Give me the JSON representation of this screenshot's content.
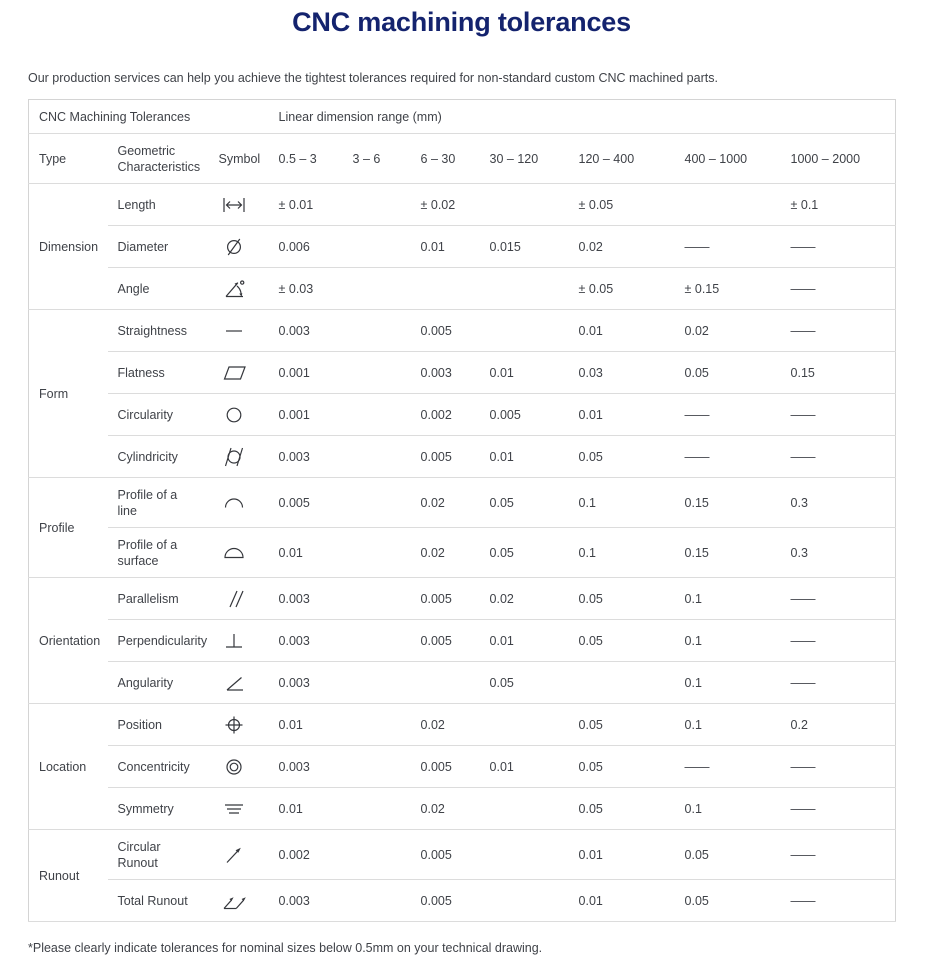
{
  "title": "CNC machining tolerances",
  "intro": "Our production services can help you achieve the tightest tolerances required for non-standard custom CNC machined parts.",
  "footnote": "*Please clearly indicate tolerances for nominal sizes below 0.5mm on your technical drawing.",
  "colors": {
    "title": "#14236e",
    "text": "#3f4248",
    "border": "#dcdcdc",
    "symbol_stroke": "#35373c"
  },
  "table": {
    "header_left": "CNC Machining Tolerances",
    "header_right": "Linear dimension range  (mm)",
    "columns": [
      "Type",
      "Geometric Characteristics",
      "Symbol",
      "0.5 – 3",
      "3 – 6",
      "6 – 30",
      "30 – 120",
      "120 – 400",
      "400 – 1000",
      "1000 – 2000"
    ],
    "groups": [
      {
        "type": "Dimension",
        "rows": [
          {
            "characteristic": "Length",
            "symbol": "length-symbol",
            "values": [
              "± 0.01",
              "",
              "± 0.02",
              "",
              "± 0.05",
              "",
              "± 0.1"
            ]
          },
          {
            "characteristic": "Diameter",
            "symbol": "diameter-symbol",
            "values": [
              "0.006",
              "",
              "0.01",
              "0.015",
              "0.02",
              "——",
              "——"
            ]
          },
          {
            "characteristic": "Angle",
            "symbol": "angle-symbol",
            "values": [
              "± 0.03",
              "",
              "",
              "",
              "± 0.05",
              "± 0.15",
              "——"
            ]
          }
        ]
      },
      {
        "type": "Form",
        "rows": [
          {
            "characteristic": "Straightness",
            "symbol": "straightness-symbol",
            "values": [
              "0.003",
              "",
              "0.005",
              "",
              "0.01",
              "0.02",
              "——"
            ]
          },
          {
            "characteristic": "Flatness",
            "symbol": "flatness-symbol",
            "values": [
              "0.001",
              "",
              "0.003",
              "0.01",
              "0.03",
              "0.05",
              "0.15"
            ]
          },
          {
            "characteristic": "Circularity",
            "symbol": "circularity-symbol",
            "values": [
              "0.001",
              "",
              "0.002",
              "0.005",
              "0.01",
              "——",
              "——"
            ]
          },
          {
            "characteristic": "Cylindricity",
            "symbol": "cylindricity-symbol",
            "values": [
              "0.003",
              "",
              "0.005",
              "0.01",
              "0.05",
              "——",
              "——"
            ]
          }
        ]
      },
      {
        "type": "Profile",
        "rows": [
          {
            "characteristic": "Profile of a line",
            "symbol": "profile-of-line-symbol",
            "values": [
              "0.005",
              "",
              "0.02",
              "0.05",
              "0.1",
              "0.15",
              "0.3"
            ]
          },
          {
            "characteristic": "Profile of a surface",
            "symbol": "profile-of-surface-symbol",
            "values": [
              "0.01",
              "",
              "0.02",
              "0.05",
              "0.1",
              "0.15",
              "0.3"
            ]
          }
        ]
      },
      {
        "type": "Orientation",
        "rows": [
          {
            "characteristic": "Parallelism",
            "symbol": "parallelism-symbol",
            "values": [
              "0.003",
              "",
              "0.005",
              "0.02",
              "0.05",
              "0.1",
              "——"
            ]
          },
          {
            "characteristic": "Perpendicularity",
            "symbol": "perpendicularity-symbol",
            "values": [
              "0.003",
              "",
              "0.005",
              "0.01",
              "0.05",
              "0.1",
              "——"
            ]
          },
          {
            "characteristic": "Angularity",
            "symbol": "angularity-symbol",
            "values": [
              "0.003",
              "",
              "",
              "0.05",
              "",
              "0.1",
              "——"
            ]
          }
        ]
      },
      {
        "type": "Location",
        "rows": [
          {
            "characteristic": "Position",
            "symbol": "position-symbol",
            "values": [
              "0.01",
              "",
              "0.02",
              "",
              "0.05",
              "0.1",
              "0.2"
            ]
          },
          {
            "characteristic": "Concentricity",
            "symbol": "concentricity-symbol",
            "values": [
              "0.003",
              "",
              "0.005",
              "0.01",
              "0.05",
              "——",
              "——"
            ]
          },
          {
            "characteristic": "Symmetry",
            "symbol": "symmetry-symbol",
            "values": [
              "0.01",
              "",
              "0.02",
              "",
              "0.05",
              "0.1",
              "——"
            ]
          }
        ]
      },
      {
        "type": "Runout",
        "rows": [
          {
            "characteristic": "Circular Runout",
            "symbol": "circular-runout-symbol",
            "values": [
              "0.002",
              "",
              "0.005",
              "",
              "0.01",
              "0.05",
              "——"
            ]
          },
          {
            "characteristic": "Total Runout",
            "symbol": "total-runout-symbol",
            "values": [
              "0.003",
              "",
              "0.005",
              "",
              "0.01",
              "0.05",
              "——"
            ]
          }
        ]
      }
    ]
  }
}
